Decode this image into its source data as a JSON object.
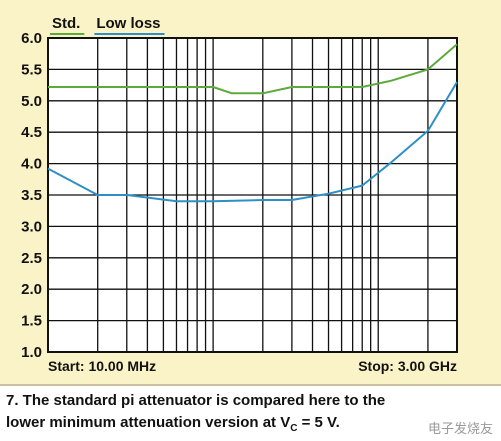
{
  "chart_data": {
    "type": "line",
    "xlim": [
      10,
      3000
    ],
    "xscale": "log",
    "ylim": [
      1.0,
      6.0
    ],
    "yticks": [
      "6.0",
      "5.5",
      "5.0",
      "4.5",
      "4.0",
      "3.5",
      "3.0",
      "2.5",
      "2.0",
      "1.5",
      "1.0"
    ],
    "grid": true,
    "legend_position": "top-left",
    "series": [
      {
        "name": "Std.",
        "color": "#5cab3a",
        "x": [
          10,
          30,
          60,
          100,
          130,
          200,
          300,
          500,
          800,
          1200,
          2000,
          3000
        ],
        "y": [
          5.22,
          5.22,
          5.22,
          5.22,
          5.12,
          5.12,
          5.22,
          5.22,
          5.22,
          5.32,
          5.5,
          5.9
        ]
      },
      {
        "name": "Low loss",
        "color": "#2e8fc8",
        "x": [
          10,
          20,
          30,
          60,
          100,
          200,
          300,
          500,
          800,
          1200,
          2000,
          3000
        ],
        "y": [
          3.92,
          3.5,
          3.5,
          3.4,
          3.4,
          3.42,
          3.42,
          3.52,
          3.65,
          4.02,
          4.52,
          5.3
        ]
      }
    ]
  },
  "footer": {
    "start": "Start: 10.00 MHz",
    "stop": "Stop: 3.00 GHz"
  },
  "caption": {
    "line1": "7. The standard pi attenuator is compared here to the",
    "line2": "lower minimum attenuation version at V",
    "line2_sub": "C",
    "line2_end": " = 5 V."
  },
  "watermark": "电子发烧友"
}
